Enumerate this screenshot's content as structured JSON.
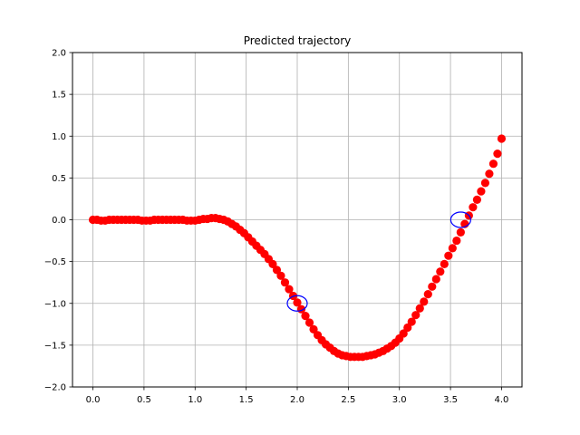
{
  "chart_data": {
    "type": "scatter",
    "title": "Predicted trajectory",
    "xlabel": "",
    "ylabel": "",
    "xlim": [
      -0.2,
      4.2
    ],
    "ylim": [
      -2.0,
      2.0
    ],
    "grid": true,
    "x_ticks": [
      "0.0",
      "0.5",
      "1.0",
      "1.5",
      "2.0",
      "2.5",
      "3.0",
      "3.5",
      "4.0"
    ],
    "y_ticks": [
      "2.0",
      "1.5",
      "1.0",
      "0.5",
      "0.0",
      "−0.5",
      "−1.0",
      "−1.5",
      "−2.0"
    ],
    "series": [
      {
        "marker": "filled-circle",
        "color": "#ff0000",
        "x": [
          0.0,
          0.04,
          0.08,
          0.12,
          0.16,
          0.2,
          0.24,
          0.28,
          0.32,
          0.36,
          0.4,
          0.44,
          0.48,
          0.52,
          0.56,
          0.6,
          0.64,
          0.68,
          0.72,
          0.76,
          0.8,
          0.84,
          0.88,
          0.92,
          0.96,
          1.0,
          1.04,
          1.08,
          1.12,
          1.16,
          1.2,
          1.24,
          1.28,
          1.32,
          1.36,
          1.4,
          1.44,
          1.48,
          1.52,
          1.56,
          1.6,
          1.64,
          1.68,
          1.72,
          1.76,
          1.8,
          1.84,
          1.88,
          1.92,
          1.96,
          2.0,
          2.04,
          2.08,
          2.12,
          2.16,
          2.2,
          2.24,
          2.28,
          2.32,
          2.36,
          2.4,
          2.44,
          2.48,
          2.52,
          2.56,
          2.6,
          2.64,
          2.68,
          2.72,
          2.76,
          2.8,
          2.84,
          2.88,
          2.92,
          2.96,
          3.0,
          3.04,
          3.08,
          3.12,
          3.16,
          3.2,
          3.24,
          3.28,
          3.32,
          3.36,
          3.4,
          3.44,
          3.48,
          3.52,
          3.56,
          3.6,
          3.64,
          3.68,
          3.72,
          3.76,
          3.8,
          3.84,
          3.88,
          3.92,
          3.96,
          4.0
        ],
        "y": [
          0.0,
          0.0,
          -0.01,
          -0.01,
          0.0,
          0.0,
          0.0,
          0.0,
          0.0,
          0.0,
          0.0,
          0.0,
          -0.01,
          -0.01,
          -0.01,
          0.0,
          0.0,
          0.0,
          0.0,
          0.0,
          0.0,
          0.0,
          0.0,
          -0.01,
          -0.01,
          -0.01,
          0.0,
          0.01,
          0.01,
          0.02,
          0.02,
          0.01,
          0.0,
          -0.02,
          -0.05,
          -0.08,
          -0.12,
          -0.16,
          -0.21,
          -0.26,
          -0.31,
          -0.36,
          -0.41,
          -0.47,
          -0.53,
          -0.6,
          -0.67,
          -0.75,
          -0.83,
          -0.91,
          -0.99,
          -1.07,
          -1.15,
          -1.23,
          -1.31,
          -1.38,
          -1.44,
          -1.49,
          -1.53,
          -1.57,
          -1.6,
          -1.62,
          -1.63,
          -1.64,
          -1.64,
          -1.64,
          -1.64,
          -1.63,
          -1.62,
          -1.61,
          -1.59,
          -1.57,
          -1.54,
          -1.51,
          -1.47,
          -1.42,
          -1.36,
          -1.29,
          -1.22,
          -1.14,
          -1.06,
          -0.98,
          -0.89,
          -0.8,
          -0.71,
          -0.62,
          -0.53,
          -0.43,
          -0.34,
          -0.25,
          -0.15,
          -0.05,
          0.05,
          0.15,
          0.24,
          0.34,
          0.44,
          0.55,
          0.67,
          0.79,
          0.97
        ]
      },
      {
        "marker": "open-circle",
        "color": "#0000ff",
        "x": [
          2.0,
          3.6
        ],
        "y": [
          -1.0,
          0.0
        ]
      }
    ]
  }
}
